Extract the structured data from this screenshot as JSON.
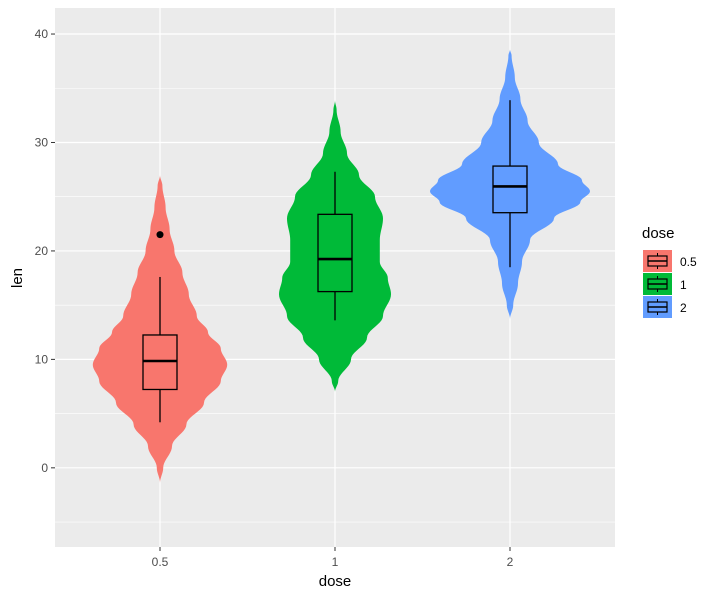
{
  "chart_data": {
    "type": "violin",
    "xlabel": "dose",
    "ylabel": "len",
    "categories": [
      "0.5",
      "1",
      "2"
    ],
    "ylim": [
      -7.3,
      42.4
    ],
    "yticks": [
      0,
      10,
      20,
      30,
      40
    ],
    "grid": true,
    "legend": {
      "title": "dose",
      "entries": [
        "0.5",
        "1",
        "2"
      ],
      "placement": "right"
    },
    "colors": [
      "#F8766D",
      "#00BA38",
      "#619CFF"
    ],
    "panel_background": "#EBEBEB",
    "series": [
      {
        "category": "0.5",
        "box": {
          "min": 4.2,
          "q1": 7.225,
          "median": 9.85,
          "q3": 12.25,
          "max": 17.6
        },
        "outliers": [
          21.5
        ],
        "violin": [
          [
            -1.4,
            0
          ],
          [
            0,
            0.04
          ],
          [
            2,
            0.15
          ],
          [
            4,
            0.33
          ],
          [
            6,
            0.55
          ],
          [
            8,
            0.76
          ],
          [
            9.5,
            0.84
          ],
          [
            11,
            0.76
          ],
          [
            12.5,
            0.6
          ],
          [
            14,
            0.46
          ],
          [
            16,
            0.36
          ],
          [
            18,
            0.28
          ],
          [
            20,
            0.18
          ],
          [
            22,
            0.12
          ],
          [
            24,
            0.07
          ],
          [
            26,
            0.03
          ],
          [
            27,
            0
          ]
        ]
      },
      {
        "category": "1",
        "box": {
          "min": 13.6,
          "q1": 16.25,
          "median": 19.25,
          "q3": 23.375,
          "max": 27.3
        },
        "outliers": [],
        "violin": [
          [
            7,
            0
          ],
          [
            8,
            0.04
          ],
          [
            10,
            0.2
          ],
          [
            12,
            0.4
          ],
          [
            14,
            0.6
          ],
          [
            16,
            0.7
          ],
          [
            17.5,
            0.66
          ],
          [
            19,
            0.56
          ],
          [
            21,
            0.56
          ],
          [
            23,
            0.6
          ],
          [
            25,
            0.5
          ],
          [
            27,
            0.3
          ],
          [
            29,
            0.15
          ],
          [
            31,
            0.07
          ],
          [
            33,
            0.02
          ],
          [
            33.9,
            0
          ]
        ]
      },
      {
        "category": "2",
        "box": {
          "min": 18.5,
          "q1": 23.525,
          "median": 25.95,
          "q3": 27.825,
          "max": 33.9
        },
        "outliers": [],
        "violin": [
          [
            13.7,
            0
          ],
          [
            15,
            0.04
          ],
          [
            17,
            0.1
          ],
          [
            19,
            0.15
          ],
          [
            21,
            0.25
          ],
          [
            23,
            0.55
          ],
          [
            24.5,
            0.88
          ],
          [
            25.5,
            1.0
          ],
          [
            26.5,
            0.9
          ],
          [
            28,
            0.6
          ],
          [
            30,
            0.36
          ],
          [
            32,
            0.22
          ],
          [
            34,
            0.13
          ],
          [
            36,
            0.06
          ],
          [
            38,
            0.02
          ],
          [
            38.6,
            0
          ]
        ]
      }
    ]
  }
}
